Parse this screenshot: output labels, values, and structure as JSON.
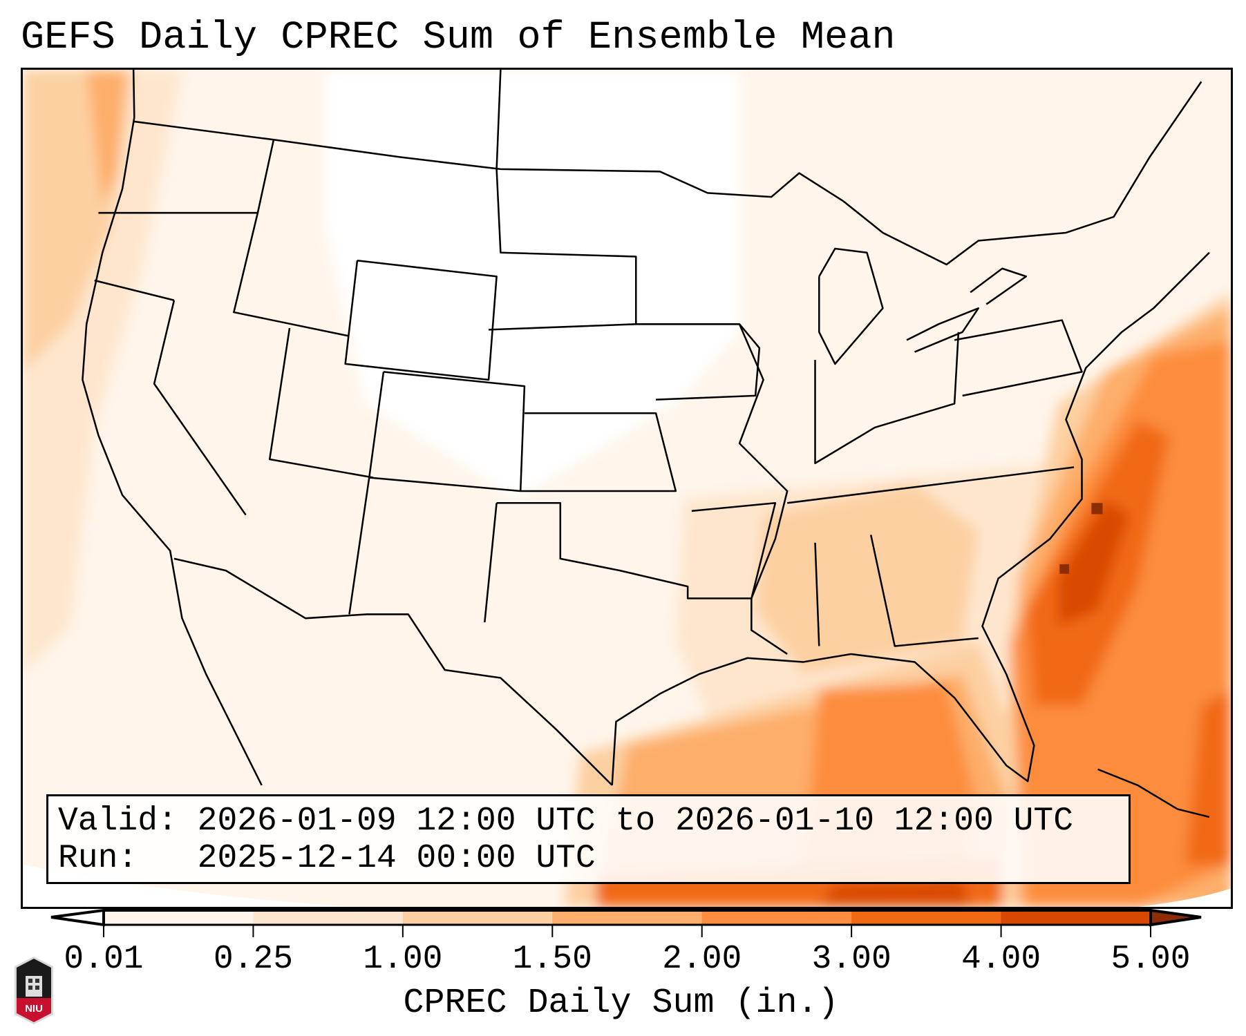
{
  "title": "GEFS Daily CPREC Sum of Ensemble Mean",
  "info_box": {
    "valid": "Valid: 2026-01-09 12:00 UTC to 2026-01-10 12:00 UTC",
    "run": "Run:   2025-12-14 00:00 UTC"
  },
  "logo_text": "NIU",
  "chart_data": {
    "type": "heatmap",
    "title": "GEFS Daily CPREC Sum of Ensemble Mean",
    "region": "Contiguous United States",
    "variable": "CPREC Daily Sum",
    "units": "in.",
    "colorbar": {
      "label": "CPREC Daily Sum (in.)",
      "levels": [
        0.01,
        0.25,
        1.0,
        1.5,
        2.0,
        3.0,
        4.0,
        5.0
      ],
      "tick_labels": [
        "0.01",
        "0.25",
        "1.00",
        "1.50",
        "2.00",
        "3.00",
        "4.00",
        "5.00"
      ],
      "colors": [
        "#fff5eb",
        "#fee6ce",
        "#fdd0a2",
        "#fdae6b",
        "#fd8d3c",
        "#f16913",
        "#d94801"
      ],
      "under_color": "#ffffff",
      "over_color": "#8c2d04",
      "extend": "both",
      "placement": "bottom"
    },
    "features": [
      {
        "area": "Pacific Northwest coast",
        "range_in": [
          1.0,
          2.0
        ]
      },
      {
        "area": "Southeast US coast / Atlantic offshore",
        "range_in": [
          2.0,
          5.0
        ]
      },
      {
        "area": "Gulf of Mexico",
        "range_in": [
          1.5,
          5.0
        ]
      },
      {
        "area": "Northern Plains",
        "range_in": [
          0,
          0.01
        ]
      }
    ]
  }
}
